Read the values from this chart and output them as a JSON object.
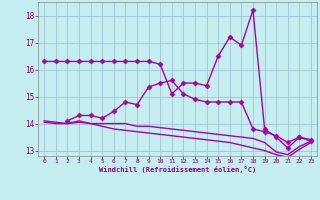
{
  "xlabel": "Windchill (Refroidissement éolien,°C)",
  "xlim": [
    -0.5,
    23.5
  ],
  "ylim": [
    12.8,
    18.5
  ],
  "yticks": [
    13,
    14,
    15,
    16,
    17,
    18
  ],
  "xticks": [
    0,
    1,
    2,
    3,
    4,
    5,
    6,
    7,
    8,
    9,
    10,
    11,
    12,
    13,
    14,
    15,
    16,
    17,
    18,
    19,
    20,
    21,
    22,
    23
  ],
  "background_color": "#c5eef0",
  "line_color": "#aa00aa",
  "grid_color": "#99bbcc",
  "series": [
    {
      "x": [
        0,
        1,
        2,
        3,
        4,
        5,
        6,
        7,
        8,
        9,
        10,
        11,
        12,
        13,
        14,
        15,
        16,
        17,
        18,
        19,
        20,
        21,
        22,
        23
      ],
      "y": [
        16.3,
        16.3,
        16.3,
        16.3,
        16.3,
        16.3,
        16.3,
        16.3,
        16.3,
        16.3,
        16.2,
        15.1,
        15.5,
        15.5,
        15.4,
        16.5,
        17.2,
        16.9,
        18.2,
        13.8,
        13.5,
        13.1,
        13.5,
        13.4
      ],
      "marker": "D",
      "markersize": 2.5,
      "linewidth": 1.0,
      "has_marker": true
    },
    {
      "x": [
        2,
        3,
        4,
        5,
        6,
        7,
        8,
        9,
        10,
        11,
        12,
        13,
        14,
        15,
        16,
        17,
        18,
        19,
        20,
        21,
        22,
        23
      ],
      "y": [
        14.1,
        14.3,
        14.3,
        14.2,
        14.45,
        14.8,
        14.7,
        15.35,
        15.5,
        15.6,
        15.1,
        14.9,
        14.8,
        14.8,
        14.8,
        14.8,
        13.8,
        13.7,
        13.55,
        13.3,
        13.5,
        13.35
      ],
      "marker": "D",
      "markersize": 2.5,
      "linewidth": 1.0,
      "has_marker": true
    },
    {
      "x": [
        0,
        1,
        2,
        3,
        4,
        5,
        6,
        7,
        8,
        9,
        10,
        11,
        12,
        13,
        14,
        15,
        16,
        17,
        18,
        19,
        20,
        21,
        22,
        23
      ],
      "y": [
        14.05,
        14.0,
        14.0,
        14.1,
        14.0,
        14.0,
        14.0,
        14.0,
        13.9,
        13.9,
        13.85,
        13.8,
        13.75,
        13.7,
        13.65,
        13.6,
        13.55,
        13.5,
        13.45,
        13.3,
        12.95,
        12.85,
        13.15,
        13.35
      ],
      "marker": null,
      "markersize": 0,
      "linewidth": 1.0,
      "has_marker": false
    },
    {
      "x": [
        0,
        1,
        2,
        3,
        4,
        5,
        6,
        7,
        8,
        9,
        10,
        11,
        12,
        13,
        14,
        15,
        16,
        17,
        18,
        19,
        20,
        21,
        22,
        23
      ],
      "y": [
        14.1,
        14.05,
        14.0,
        14.05,
        14.0,
        13.9,
        13.8,
        13.75,
        13.7,
        13.65,
        13.6,
        13.55,
        13.5,
        13.45,
        13.4,
        13.35,
        13.3,
        13.2,
        13.1,
        13.0,
        12.85,
        12.75,
        13.05,
        13.3
      ],
      "marker": null,
      "markersize": 0,
      "linewidth": 1.0,
      "has_marker": false
    }
  ]
}
